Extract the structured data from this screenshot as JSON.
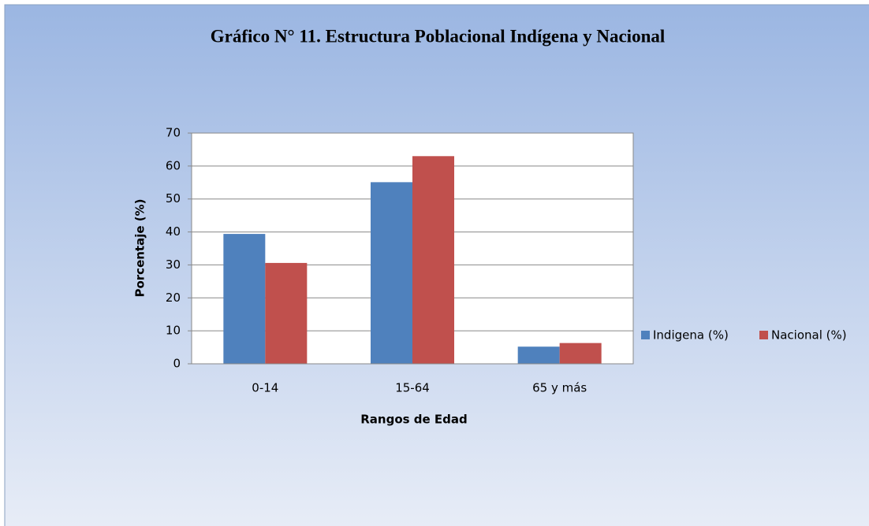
{
  "chart_data": {
    "type": "bar",
    "title": "Gráfico N° 11. Estructura Poblacional Indígena y Nacional",
    "x_label": "Rangos de Edad",
    "y_label": "Porcentaje (%)",
    "categories": [
      "0-14",
      "15-64",
      "65 y más"
    ],
    "series": [
      {
        "name": "Indigena (%)",
        "color": "#4f81bd",
        "values": [
          39.4,
          55.1,
          5.2
        ]
      },
      {
        "name": "Nacional (%)",
        "color": "#c0504d",
        "values": [
          30.6,
          63.0,
          6.3
        ]
      }
    ],
    "ylim": [
      0,
      70
    ],
    "yticks": [
      0,
      10,
      20,
      30,
      40,
      50,
      60,
      70
    ],
    "grid": true,
    "legend": "right"
  }
}
